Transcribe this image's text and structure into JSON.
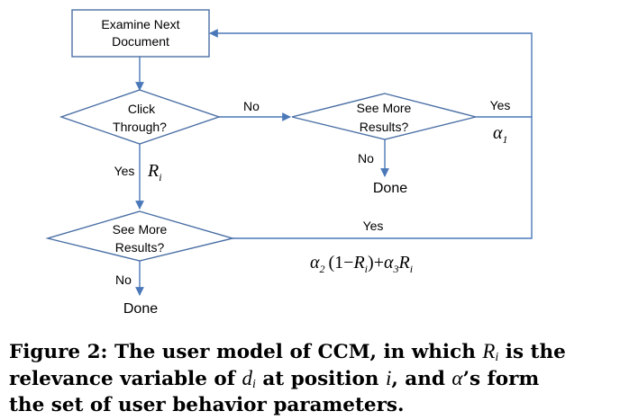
{
  "flowchart": {
    "start_box": {
      "line1": "Examine Next",
      "line2": "Document"
    },
    "click_diamond": {
      "line1": "Click",
      "line2": "Through?"
    },
    "see_more_right": {
      "line1": "See More",
      "line2": "Results?"
    },
    "see_more_lower": {
      "line1": "See More",
      "line2": "Results?"
    },
    "labels": {
      "no_click": "No",
      "yes_right": "Yes",
      "no_right": "No",
      "done_right": "Done",
      "yes_click": "Yes",
      "yes_lower": "Yes",
      "no_lower": "No",
      "done_lower": "Done"
    },
    "math": {
      "R_base": "R",
      "R_sub": "i",
      "alpha": "α",
      "alpha1_sub": "1",
      "alpha2_sub": "2",
      "alpha3_sub": "3",
      "one_minus": "1−",
      "plus": "+",
      "lparen": "(",
      "rparen": ")"
    }
  },
  "caption": {
    "prefix": "Figure 2: The user model of CCM, in which",
    "R_base": "R",
    "R_sub": "i",
    "part2": "is the",
    "line2_start": "relevance variable of",
    "d_base": "d",
    "d_sub": "i",
    "part3": "at position",
    "i_var": "i",
    "part4": ", and",
    "alpha": "α",
    "line2_end": "’s form",
    "line3": "the set of user behavior parameters."
  }
}
